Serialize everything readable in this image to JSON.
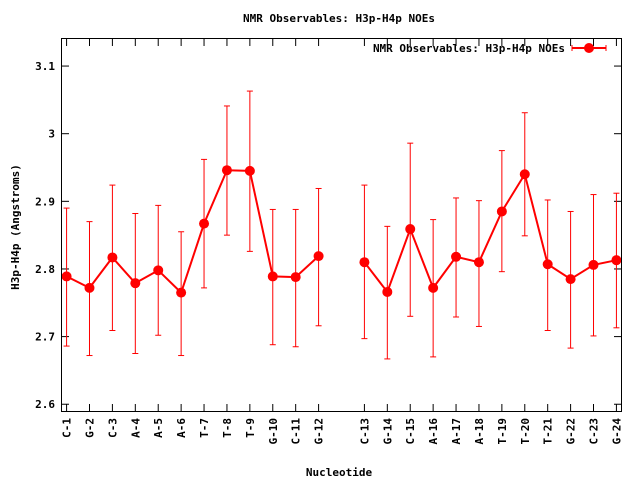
{
  "chart_data": {
    "type": "line",
    "title": "NMR Observables: H3p-H4p NOEs",
    "xlabel": "Nucleotide",
    "ylabel": "H3p-H4p (Angstroms)",
    "ylim": [
      2.59,
      3.14
    ],
    "yticks": [
      2.6,
      2.7,
      2.8,
      2.9,
      3,
      3.1
    ],
    "ytick_labels": [
      "2.6",
      "2.7",
      "2.8",
      "2.9",
      "3",
      "3.1"
    ],
    "x_positions": [
      1,
      2,
      3,
      4,
      5,
      6,
      7,
      8,
      9,
      10,
      11,
      12,
      14,
      15,
      16,
      17,
      18,
      19,
      20,
      21,
      22,
      23,
      24,
      25
    ],
    "xlim": [
      0.8,
      25.2
    ],
    "categories": [
      "C-1",
      "G-2",
      "C-3",
      "A-4",
      "A-5",
      "A-6",
      "T-7",
      "T-8",
      "T-9",
      "G-10",
      "C-11",
      "G-12",
      "C-13",
      "G-14",
      "C-15",
      "A-16",
      "A-17",
      "A-18",
      "T-19",
      "T-20",
      "T-21",
      "G-22",
      "C-23",
      "G-24"
    ],
    "segments": [
      [
        0,
        11
      ],
      [
        12,
        23
      ]
    ],
    "grid": false,
    "legend_position": "top-right",
    "series": [
      {
        "name": "NMR Observables: H3p-H4p NOEs",
        "color": "#ff0000",
        "marker": "circle",
        "values": [
          2.789,
          2.772,
          2.817,
          2.779,
          2.798,
          2.765,
          2.867,
          2.946,
          2.945,
          2.789,
          2.788,
          2.819,
          2.81,
          2.766,
          2.859,
          2.772,
          2.818,
          2.81,
          2.885,
          2.94,
          2.807,
          2.785,
          2.806,
          2.813
        ],
        "err_low": [
          2.686,
          2.672,
          2.709,
          2.675,
          2.702,
          2.672,
          2.772,
          2.85,
          2.826,
          2.688,
          2.685,
          2.716,
          2.697,
          2.667,
          2.73,
          2.67,
          2.729,
          2.715,
          2.796,
          2.849,
          2.709,
          2.683,
          2.701,
          2.713
        ],
        "err_high": [
          2.89,
          2.87,
          2.924,
          2.882,
          2.894,
          2.855,
          2.962,
          3.041,
          3.063,
          2.888,
          2.888,
          2.919,
          2.924,
          2.863,
          2.986,
          2.873,
          2.905,
          2.901,
          2.975,
          3.031,
          2.902,
          2.885,
          2.91,
          2.912
        ]
      }
    ]
  }
}
